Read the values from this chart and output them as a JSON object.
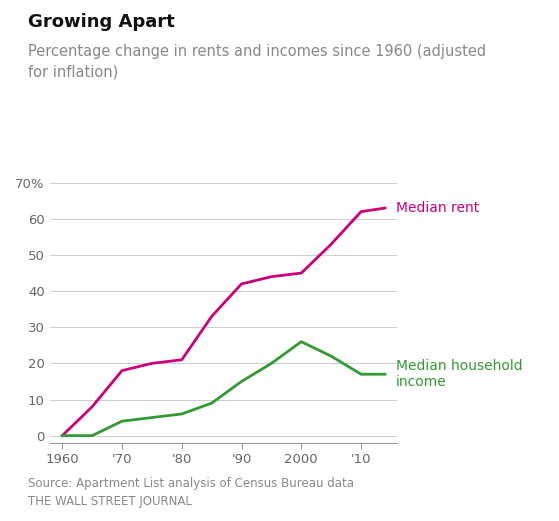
{
  "title": "Growing Apart",
  "subtitle": "Percentage change in rents and incomes since 1960 (adjusted\nfor inflation)",
  "source": "Source: Apartment List analysis of Census Bureau data\nTHE WALL STREET JOURNAL",
  "rent_x": [
    1960,
    1965,
    1970,
    1975,
    1980,
    1985,
    1990,
    1995,
    2000,
    2005,
    2010,
    2014
  ],
  "rent_y": [
    0,
    8,
    18,
    20,
    21,
    33,
    42,
    44,
    45,
    53,
    62,
    63
  ],
  "income_x": [
    1960,
    1965,
    1970,
    1975,
    1980,
    1985,
    1990,
    1995,
    2000,
    2005,
    2010,
    2014
  ],
  "income_y": [
    0,
    0,
    4,
    5,
    6,
    9,
    15,
    20,
    26,
    22,
    17,
    17
  ],
  "rent_color": "#cc007a",
  "income_color": "#339933",
  "rent_label": "Median rent",
  "income_label": "Median household\nincome",
  "ylim": [
    -2,
    73
  ],
  "yticks": [
    0,
    10,
    20,
    30,
    40,
    50,
    60,
    70
  ],
  "ytick_labels": [
    "0",
    "10",
    "20",
    "30",
    "40",
    "50",
    "60",
    "70%"
  ],
  "xticks": [
    1960,
    1970,
    1980,
    1990,
    2000,
    2010
  ],
  "xtick_labels": [
    "1960",
    "'70",
    "'80",
    "'90",
    "2000",
    "'10"
  ],
  "xlim": [
    1958,
    2016
  ],
  "background_color": "#ffffff",
  "grid_color": "#cccccc",
  "title_fontsize": 13,
  "subtitle_fontsize": 10.5,
  "label_fontsize": 10,
  "tick_fontsize": 9.5,
  "source_fontsize": 8.5
}
